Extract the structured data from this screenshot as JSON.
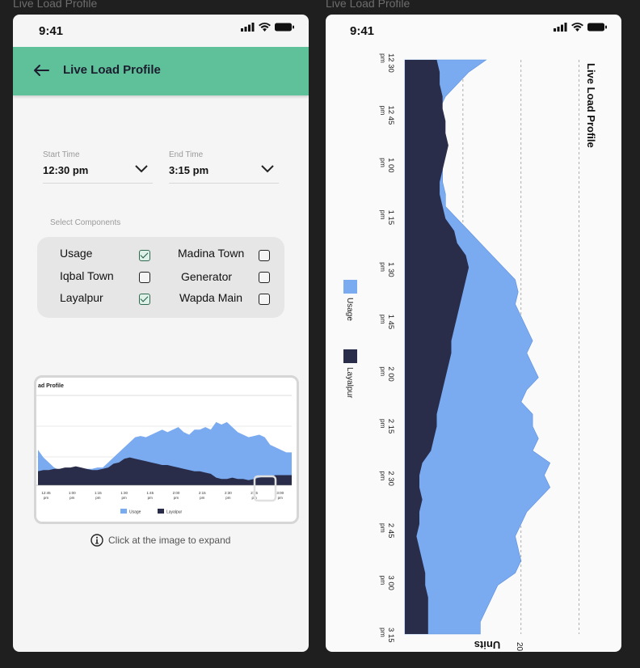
{
  "frames": [
    "Live Load Profile",
    "Live Load Profile"
  ],
  "status": {
    "time": "9:41"
  },
  "screen1": {
    "title": "Live Load Profile",
    "start": {
      "label": "Start Time",
      "value": "12:30 pm"
    },
    "end": {
      "label": "End Time",
      "value": "3:15 pm"
    },
    "components_label": "Select Components",
    "components": [
      {
        "label": "Usage",
        "checked": true
      },
      {
        "label": "Madina Town",
        "checked": false
      },
      {
        "label": "Iqbal Town",
        "checked": false
      },
      {
        "label": "Generator",
        "checked": false
      },
      {
        "label": "Layalpur",
        "checked": true
      },
      {
        "label": "Wapda Main",
        "checked": false
      }
    ],
    "thumbnail": {
      "title": "ad Profile",
      "ticks": [
        "12:45 pm",
        "1:00 pm",
        "1:15 pm",
        "1:30 pm",
        "1:45 pm",
        "2:00 pm",
        "2:15 pm",
        "2:30 pm",
        "2:45 pm",
        "3:00 pm"
      ],
      "legend": [
        "Usage",
        "Layalpur"
      ]
    },
    "hint": "Click at the image to expand"
  },
  "chart_data": {
    "type": "area",
    "title": "Live Load Profile",
    "orientation": "rotated 90° clockwise",
    "xlabel": "",
    "ylabel": "Units",
    "y_tick_labels": [
      "20"
    ],
    "x_ticks": [
      {
        "time": "12 30",
        "period": "pm"
      },
      {
        "time": "12 45",
        "period": "pm"
      },
      {
        "time": "1 00",
        "period": "pm"
      },
      {
        "time": "1 15",
        "period": "pm"
      },
      {
        "time": "1 30",
        "period": "pm"
      },
      {
        "time": "1 45",
        "period": "pm"
      },
      {
        "time": "2 00",
        "period": "pm"
      },
      {
        "time": "2 15",
        "period": "pm"
      },
      {
        "time": "2 30",
        "period": "pm"
      },
      {
        "time": "2 45",
        "period": "pm"
      },
      {
        "time": "3 00",
        "period": "pm"
      },
      {
        "time": "3 15",
        "period": "pm"
      }
    ],
    "ylim": [
      0,
      32
    ],
    "gridlines_y": [
      10,
      20,
      30
    ],
    "legend": [
      {
        "name": "Usage",
        "color": "#7aaaf0"
      },
      {
        "name": "Layalpur",
        "color": "#2a2d4a"
      }
    ],
    "series": [
      {
        "name": "Layalpur",
        "color": "#2a2d4a",
        "values": [
          5.5,
          6,
          6,
          6.5,
          6.5,
          7,
          7,
          7.5,
          7,
          6.5,
          6,
          6,
          6.5,
          7,
          8.5,
          9,
          10.5,
          11,
          10.5,
          10,
          9.5,
          9,
          8.5,
          8,
          8,
          7.5,
          7,
          6.5,
          6,
          5.5,
          5.5,
          5,
          4.5,
          3,
          2.5,
          2.5,
          3,
          2.5,
          2.5,
          2,
          2.5,
          3,
          3.5,
          3.5,
          4,
          4,
          4,
          4
        ]
      },
      {
        "name": "Usage",
        "color": "#7aaaf0",
        "values": [
          14,
          11,
          9,
          7,
          6,
          6,
          6,
          6,
          6,
          6.5,
          6.5,
          7,
          7,
          9,
          11,
          13,
          15,
          17,
          19,
          19.5,
          19,
          20,
          21,
          22,
          21,
          22,
          23,
          21,
          20,
          22,
          22,
          23,
          22,
          25,
          24,
          25,
          23,
          21,
          20,
          19,
          19.5,
          20,
          19,
          16,
          15,
          14,
          13,
          13
        ]
      }
    ]
  }
}
